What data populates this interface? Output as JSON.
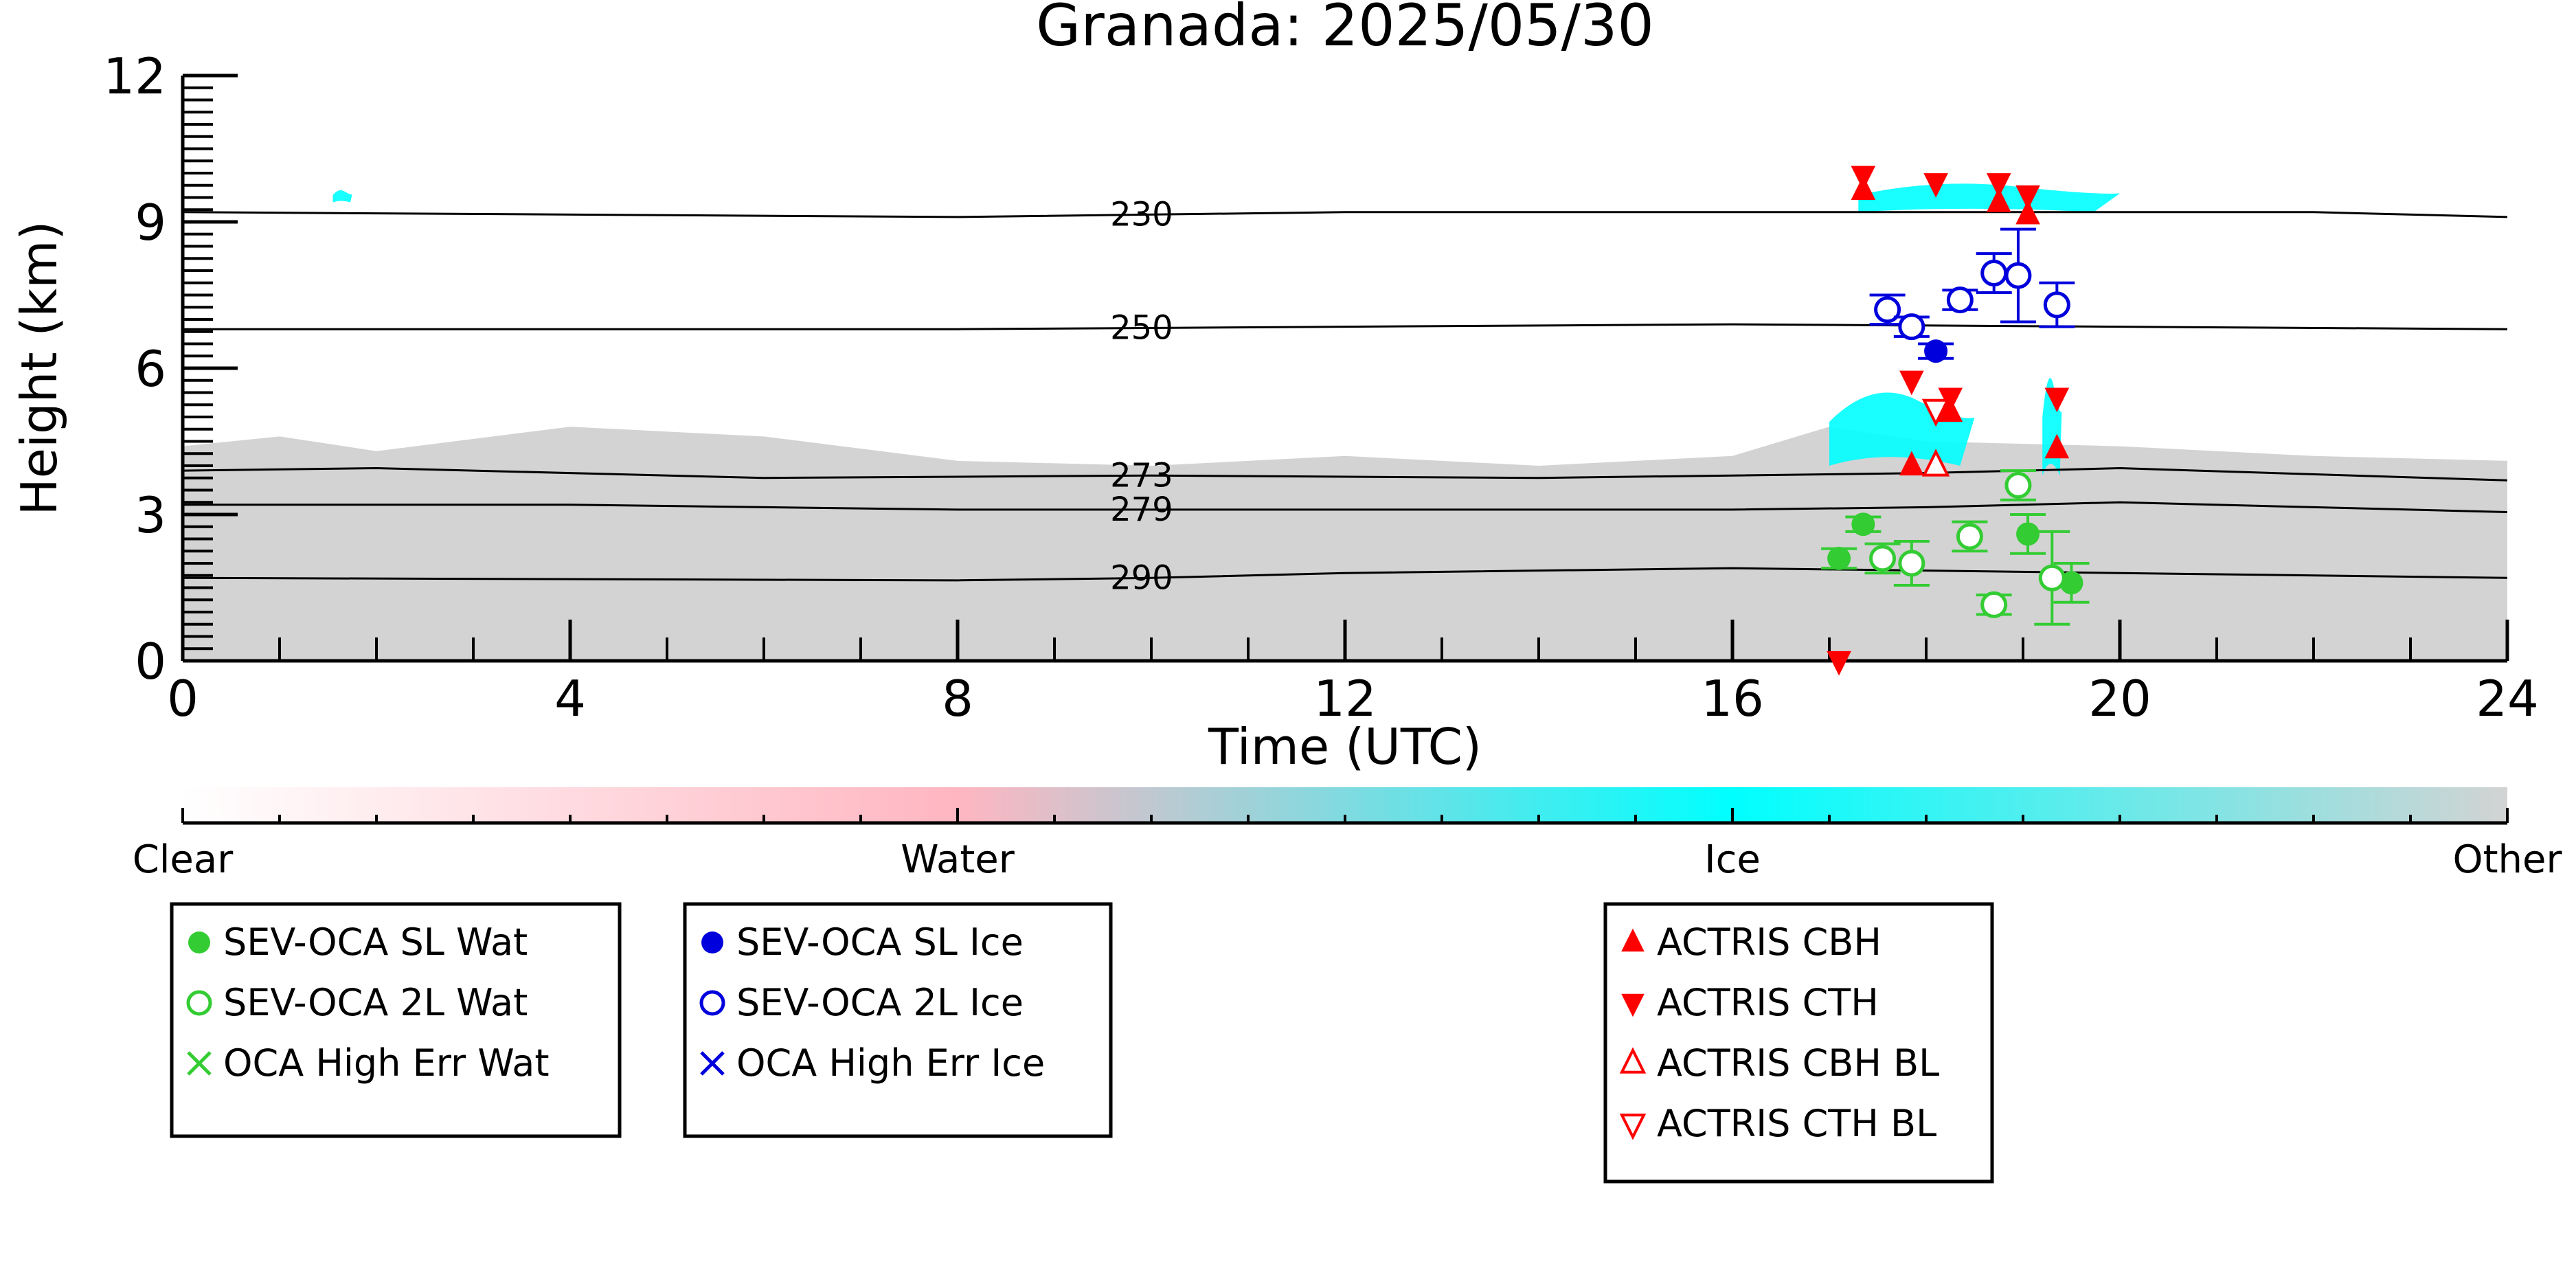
{
  "chart_data": {
    "type": "scatter",
    "title": "Granada: 2025/05/30",
    "xlabel": "Time (UTC)",
    "ylabel": "Height (km)",
    "xlim": [
      0,
      24
    ],
    "ylim": [
      0,
      12
    ],
    "x_ticks": [
      "0",
      "4",
      "8",
      "12",
      "16",
      "20",
      "24"
    ],
    "y_ticks": [
      "0",
      "3",
      "6",
      "9",
      "12"
    ],
    "grid": false,
    "background_layer": {
      "description_colors": {
        "Clear": "#ffffff",
        "Water": "#ffb6c1",
        "Ice": "#00ffff",
        "Other": "#d3d3d3"
      },
      "other_region": [
        [
          0,
          4.4
        ],
        [
          1,
          4.6
        ],
        [
          2,
          4.3
        ],
        [
          4,
          4.8
        ],
        [
          6,
          4.6
        ],
        [
          8,
          4.1
        ],
        [
          10,
          4.0
        ],
        [
          12,
          4.2
        ],
        [
          14,
          4.0
        ],
        [
          16,
          4.2
        ],
        [
          17,
          4.8
        ],
        [
          18,
          4.5
        ],
        [
          20,
          4.4
        ],
        [
          22,
          4.2
        ],
        [
          24,
          4.1
        ]
      ],
      "ice_blobs": [
        {
          "x": [
            1.55,
            1.75
          ],
          "y": [
            9.4,
            9.7
          ]
        },
        {
          "x": [
            17.3,
            20.0
          ],
          "y": [
            9.2,
            9.9
          ]
        },
        {
          "x": [
            17.0,
            18.5
          ],
          "y": [
            4.0,
            5.8
          ]
        },
        {
          "x": [
            19.2,
            19.4
          ],
          "y": [
            3.8,
            6.2
          ]
        }
      ]
    },
    "isotherms": [
      {
        "label": "230",
        "points": [
          [
            0,
            9.2
          ],
          [
            8,
            9.1
          ],
          [
            12,
            9.2
          ],
          [
            16,
            9.2
          ],
          [
            20,
            9.2
          ],
          [
            22,
            9.2
          ],
          [
            24,
            9.1
          ]
        ]
      },
      {
        "label": "250",
        "points": [
          [
            0,
            6.8
          ],
          [
            8,
            6.8
          ],
          [
            12,
            6.85
          ],
          [
            16,
            6.9
          ],
          [
            20,
            6.85
          ],
          [
            24,
            6.8
          ]
        ]
      },
      {
        "label": "273",
        "points": [
          [
            0,
            3.9
          ],
          [
            2,
            3.95
          ],
          [
            6,
            3.75
          ],
          [
            10,
            3.8
          ],
          [
            14,
            3.75
          ],
          [
            16,
            3.8
          ],
          [
            18,
            3.85
          ],
          [
            20,
            3.95
          ],
          [
            24,
            3.7
          ]
        ]
      },
      {
        "label": "279",
        "points": [
          [
            0,
            3.2
          ],
          [
            4,
            3.2
          ],
          [
            8,
            3.1
          ],
          [
            12,
            3.1
          ],
          [
            16,
            3.1
          ],
          [
            18,
            3.15
          ],
          [
            20,
            3.25
          ],
          [
            24,
            3.05
          ]
        ]
      },
      {
        "label": "290",
        "points": [
          [
            0,
            1.7
          ],
          [
            8,
            1.65
          ],
          [
            10,
            1.7
          ],
          [
            12,
            1.8
          ],
          [
            16,
            1.9
          ],
          [
            20,
            1.8
          ],
          [
            24,
            1.7
          ]
        ]
      }
    ],
    "series": [
      {
        "name": "SEV-OCA SL Wat",
        "color": "#33cc33",
        "marker": "filled-circle",
        "points": [
          {
            "x": 17.1,
            "y": 2.1,
            "err": 0.2
          },
          {
            "x": 17.35,
            "y": 2.8,
            "err": 0.15
          },
          {
            "x": 19.05,
            "y": 2.6,
            "err": 0.4
          },
          {
            "x": 19.5,
            "y": 1.6,
            "err": 0.4
          }
        ]
      },
      {
        "name": "SEV-OCA 2L Wat",
        "color": "#33cc33",
        "marker": "open-circle",
        "points": [
          {
            "x": 17.55,
            "y": 2.1,
            "err": 0.3
          },
          {
            "x": 17.85,
            "y": 2.0,
            "err": 0.45
          },
          {
            "x": 18.45,
            "y": 2.55,
            "err": 0.3
          },
          {
            "x": 18.7,
            "y": 1.15,
            "err": 0.2
          },
          {
            "x": 18.95,
            "y": 3.6,
            "err": 0.3
          },
          {
            "x": 19.3,
            "y": 1.7,
            "err": 0.95
          }
        ]
      },
      {
        "name": "OCA High Err Wat",
        "color": "#33cc33",
        "marker": "x",
        "points": []
      },
      {
        "name": "SEV-OCA SL Ice",
        "color": "#0000dd",
        "marker": "filled-circle",
        "points": [
          {
            "x": 18.1,
            "y": 6.35,
            "err": 0.15
          }
        ]
      },
      {
        "name": "SEV-OCA 2L Ice",
        "color": "#0000dd",
        "marker": "open-circle",
        "points": [
          {
            "x": 17.6,
            "y": 7.2,
            "err": 0.3
          },
          {
            "x": 17.85,
            "y": 6.85,
            "err": 0.2
          },
          {
            "x": 18.35,
            "y": 7.4,
            "err": 0.2
          },
          {
            "x": 18.7,
            "y": 7.95,
            "err": 0.4
          },
          {
            "x": 18.95,
            "y": 7.9,
            "err": 0.95
          },
          {
            "x": 19.35,
            "y": 7.3,
            "err": 0.45
          }
        ]
      },
      {
        "name": "OCA High Err Ice",
        "color": "#0000dd",
        "marker": "x",
        "points": []
      },
      {
        "name": "ACTRIS CBH",
        "color": "#ff0000",
        "marker": "triangle-up",
        "points": [
          {
            "x": 17.35,
            "y": 9.65
          },
          {
            "x": 17.85,
            "y": 4.0
          },
          {
            "x": 18.25,
            "y": 5.1
          },
          {
            "x": 18.75,
            "y": 9.4
          },
          {
            "x": 19.05,
            "y": 9.15
          },
          {
            "x": 19.35,
            "y": 4.35
          }
        ]
      },
      {
        "name": "ACTRIS CTH",
        "color": "#ff0000",
        "marker": "triangle-down",
        "points": [
          {
            "x": 17.1,
            "y": 0.0
          },
          {
            "x": 17.35,
            "y": 9.95
          },
          {
            "x": 17.85,
            "y": 5.75
          },
          {
            "x": 18.1,
            "y": 9.8
          },
          {
            "x": 18.25,
            "y": 5.4
          },
          {
            "x": 18.75,
            "y": 9.8
          },
          {
            "x": 19.05,
            "y": 9.55
          },
          {
            "x": 19.35,
            "y": 5.4
          }
        ]
      },
      {
        "name": "ACTRIS CBH BL",
        "color": "#ff0000",
        "marker": "open-triangle-up",
        "points": [
          {
            "x": 18.1,
            "y": 4.0
          }
        ]
      },
      {
        "name": "ACTRIS CTH BL",
        "color": "#ff0000",
        "marker": "open-triangle-down",
        "points": [
          {
            "x": 18.1,
            "y": 5.15
          }
        ]
      }
    ],
    "colorbar": {
      "labels": [
        "Clear",
        "Water",
        "Ice",
        "Other"
      ],
      "colors": [
        "#ffffff",
        "#ffb6c1",
        "#00ffff",
        "#d3d3d3"
      ]
    },
    "legends": [
      {
        "entries": [
          {
            "label": "SEV-OCA SL Wat",
            "color": "#33cc33",
            "marker": "filled-circle"
          },
          {
            "label": "SEV-OCA 2L Wat",
            "color": "#33cc33",
            "marker": "open-circle"
          },
          {
            "label": "OCA High Err Wat",
            "color": "#33cc33",
            "marker": "x"
          }
        ]
      },
      {
        "entries": [
          {
            "label": "SEV-OCA SL Ice",
            "color": "#0000dd",
            "marker": "filled-circle"
          },
          {
            "label": "SEV-OCA 2L Ice",
            "color": "#0000dd",
            "marker": "open-circle"
          },
          {
            "label": "OCA High Err Ice",
            "color": "#0000dd",
            "marker": "x"
          }
        ]
      },
      {
        "entries": [
          {
            "label": "ACTRIS CBH",
            "color": "#ff0000",
            "marker": "triangle-up"
          },
          {
            "label": "ACTRIS CTH",
            "color": "#ff0000",
            "marker": "triangle-down"
          },
          {
            "label": "ACTRIS CBH BL",
            "color": "#ff0000",
            "marker": "open-triangle-up"
          },
          {
            "label": "ACTRIS CTH BL",
            "color": "#ff0000",
            "marker": "open-triangle-down"
          }
        ]
      }
    ]
  }
}
